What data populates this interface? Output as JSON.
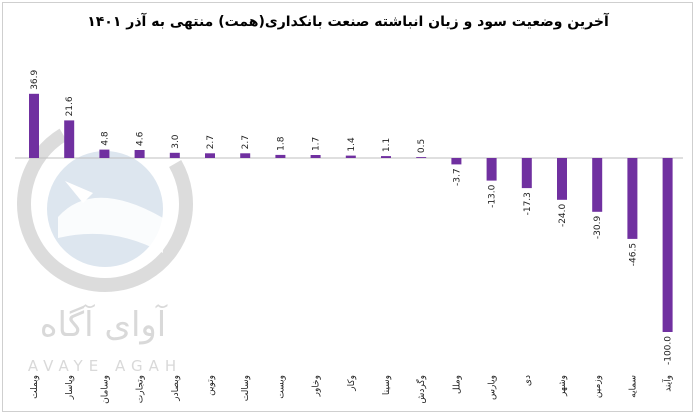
{
  "chart_data": {
    "type": "bar",
    "title": "آخرین وضعیت سود و زیان انباشته صنعت بانکداری(همت)  منتهی به آذر ۱۴۰۱",
    "xlabel": "",
    "ylabel": "",
    "ylim": [
      -100,
      36.9
    ],
    "grid": false,
    "legend": "none",
    "bar_color": "#7030a0",
    "categories": [
      "وبملت",
      "وپاسار",
      "وسامان",
      "وتجارت",
      "وبصادر",
      "وتوین",
      "وسالت",
      "وبست",
      "وخاور",
      "وکار",
      "وسینا",
      "وگردش",
      "وملل",
      "وپارس",
      "دی",
      "وشهر",
      "وزمین",
      "سمایه",
      "وآیند"
    ],
    "values": [
      36.9,
      21.6,
      4.8,
      4.6,
      3.0,
      2.7,
      2.7,
      1.8,
      1.7,
      1.4,
      1.1,
      0.5,
      -3.7,
      -13.0,
      -17.3,
      -24.0,
      -30.9,
      -46.5,
      -100.0
    ],
    "value_labels": [
      "36.9",
      "21.6",
      "4.8",
      "4.6",
      "3.0",
      "2.7",
      "2.7",
      "1.8",
      "1.7",
      "1.4",
      "1.1",
      "0.5",
      "-3.7",
      "-13.0",
      "-17.3",
      "-24.0",
      "-30.9",
      "-46.5",
      "-100.0"
    ]
  },
  "watermark": {
    "text_fa": "آوای آگاه",
    "text_en": "AVAYE AGAH"
  }
}
